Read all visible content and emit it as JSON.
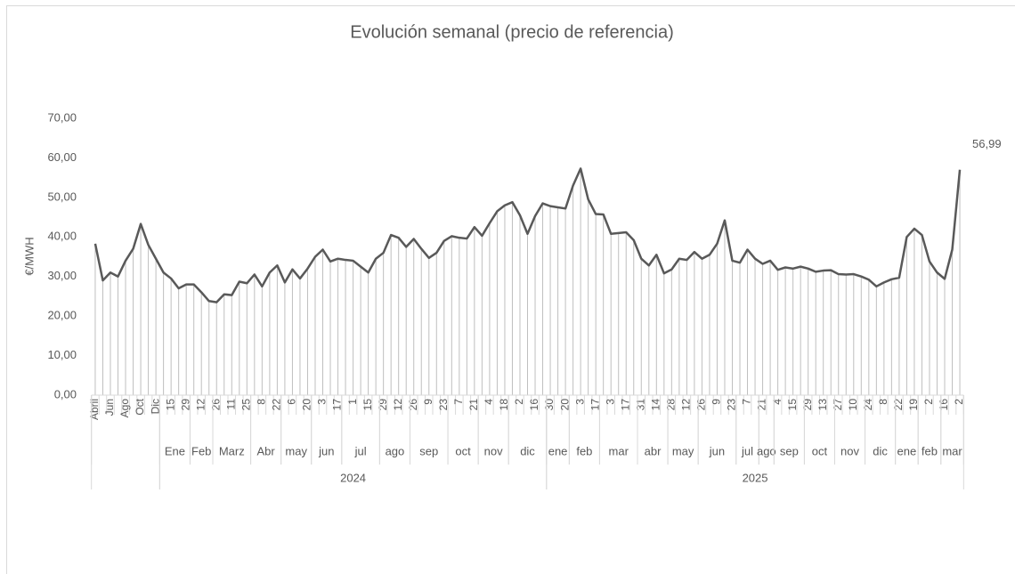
{
  "chart_data": {
    "type": "line",
    "title": "Evolución semanal (precio de referencia)",
    "y_label": "€/MWH",
    "categories": [
      "Abril",
      null,
      "Jun",
      null,
      "Ago",
      null,
      "Oct",
      null,
      "Dic",
      null,
      "15",
      null,
      "29",
      null,
      "12",
      null,
      "26",
      null,
      "11",
      null,
      "25",
      null,
      "8",
      null,
      "22",
      null,
      "6",
      null,
      "20",
      null,
      "3",
      null,
      "17",
      null,
      "1",
      null,
      "15",
      null,
      "29",
      null,
      "12",
      null,
      "26",
      null,
      "9",
      null,
      "23",
      null,
      "7",
      null,
      "21",
      null,
      "4",
      null,
      "18",
      null,
      "2",
      null,
      "16",
      null,
      "30",
      null,
      "20",
      null,
      "3",
      null,
      "17",
      null,
      "3",
      null,
      "17",
      null,
      "31",
      null,
      "14",
      null,
      "28",
      null,
      "12",
      null,
      "26",
      null,
      "9",
      null,
      "23",
      null,
      "7",
      null,
      "21",
      null,
      "4",
      null,
      "15",
      null,
      "29",
      null,
      "13",
      null,
      "27",
      null,
      "10",
      null,
      "24",
      null,
      "8",
      null,
      "22",
      null,
      "19",
      null,
      "2",
      null,
      "16",
      null,
      "2"
    ],
    "months": [
      null,
      null,
      null,
      null,
      null,
      null,
      null,
      null,
      null,
      "Ene",
      "Ene",
      "Ene",
      "Ene",
      "Feb",
      "Feb",
      "Feb",
      "Marz",
      "Marz",
      "Marz",
      "Marz",
      "Marz",
      "Abr",
      "Abr",
      "Abr",
      "Abr",
      "may",
      "may",
      "may",
      "may",
      "jun",
      "jun",
      "jun",
      "jun",
      "jul",
      "jul",
      "jul",
      "jul",
      "jul",
      "ago",
      "ago",
      "ago",
      "ago",
      "sep",
      "sep",
      "sep",
      "sep",
      "sep",
      "oct",
      "oct",
      "oct",
      "oct",
      "nov",
      "nov",
      "nov",
      "nov",
      "dic",
      "dic",
      "dic",
      "dic",
      "dic",
      "ene",
      "ene",
      "ene",
      "feb",
      "feb",
      "feb",
      "feb",
      "mar",
      "mar",
      "mar",
      "mar",
      "mar",
      "abr",
      "abr",
      "abr",
      "abr",
      "may",
      "may",
      "may",
      "may",
      "jun",
      "jun",
      "jun",
      "jun",
      "jun",
      "jul",
      "jul",
      "jul",
      "ago",
      "ago",
      "sep",
      "sep",
      "sep",
      "sep",
      "oct",
      "oct",
      "oct",
      "oct",
      "nov",
      "nov",
      "nov",
      "nov",
      "dic",
      "dic",
      "dic",
      "dic",
      "ene",
      "ene",
      "ene",
      "feb",
      "feb",
      "feb",
      "mar",
      "mar",
      "mar"
    ],
    "years": [
      null,
      null,
      null,
      null,
      null,
      null,
      null,
      null,
      null,
      "2024",
      "2024",
      "2024",
      "2024",
      "2024",
      "2024",
      "2024",
      "2024",
      "2024",
      "2024",
      "2024",
      "2024",
      "2024",
      "2024",
      "2024",
      "2024",
      "2024",
      "2024",
      "2024",
      "2024",
      "2024",
      "2024",
      "2024",
      "2024",
      "2024",
      "2024",
      "2024",
      "2024",
      "2024",
      "2024",
      "2024",
      "2024",
      "2024",
      "2024",
      "2024",
      "2024",
      "2024",
      "2024",
      "2024",
      "2024",
      "2024",
      "2024",
      "2024",
      "2024",
      "2024",
      "2024",
      "2024",
      "2024",
      "2024",
      "2024",
      "2024",
      "2025",
      "2025",
      "2025",
      "2025",
      "2025",
      "2025",
      "2025",
      "2025",
      "2025",
      "2025",
      "2025",
      "2025",
      "2025",
      "2025",
      "2025",
      "2025",
      "2025",
      "2025",
      "2025",
      "2025",
      "2025",
      "2025",
      "2025",
      "2025",
      "2025",
      "2025",
      "2025",
      "2025",
      "2025",
      "2025",
      "2025",
      "2025",
      "2025",
      "2025",
      "2025",
      "2025",
      "2025",
      "2025",
      "2025",
      "2025",
      "2025",
      "2025",
      "2025",
      "2025",
      "2025",
      "2025",
      "2025",
      "2025",
      "2025",
      "2025",
      "2025",
      "2025",
      "2025",
      "2025",
      "2025"
    ],
    "values": [
      38.3,
      29,
      31,
      30,
      34,
      37,
      43.3,
      38,
      34.5,
      31,
      29.5,
      27,
      28,
      28,
      26,
      23.8,
      23.5,
      25.5,
      25.3,
      28.7,
      28.3,
      30.5,
      27.5,
      31,
      32.8,
      28.5,
      31.8,
      29.5,
      32,
      35,
      36.8,
      33.8,
      34.5,
      34.2,
      34,
      32.5,
      31,
      34.5,
      36,
      40.5,
      39.8,
      37.5,
      39.5,
      37,
      34.7,
      36,
      39,
      40.2,
      39.8,
      39.6,
      42.5,
      40.3,
      43.5,
      46.5,
      48,
      48.8,
      45.5,
      40.8,
      45.3,
      48.5,
      47.8,
      47.5,
      47.2,
      53,
      57.3,
      49.5,
      45.8,
      45.7,
      40.8,
      41,
      41.2,
      39.2,
      34.5,
      32.8,
      35.5,
      30.8,
      31.8,
      34.5,
      34.2,
      36.2,
      34.5,
      35.5,
      38.3,
      44.2,
      34,
      33.5,
      36.8,
      34.5,
      33.2,
      34,
      31.7,
      32.3,
      32,
      32.5,
      32,
      31.2,
      31.5,
      31.6,
      30.6,
      30.5,
      30.6,
      30,
      29.2,
      27.5,
      28.5,
      29.3,
      29.7,
      40,
      42.1,
      40.5,
      33.8,
      31,
      29.4,
      36.8,
      56.99
    ],
    "value_labels": [
      null,
      null,
      null,
      null,
      null,
      null,
      null,
      null,
      null,
      null,
      null,
      null,
      null,
      null,
      null,
      null,
      null,
      null,
      null,
      null,
      null,
      null,
      null,
      null,
      null,
      null,
      null,
      null,
      null,
      null,
      null,
      null,
      null,
      null,
      null,
      null,
      null,
      null,
      null,
      null,
      null,
      null,
      null,
      null,
      null,
      null,
      null,
      null,
      null,
      null,
      null,
      null,
      null,
      null,
      null,
      null,
      null,
      null,
      null,
      null,
      null,
      null,
      null,
      null,
      null,
      null,
      null,
      null,
      null,
      null,
      null,
      null,
      null,
      null,
      null,
      null,
      null,
      null,
      null,
      null,
      null,
      null,
      null,
      null,
      null,
      null,
      null,
      null,
      null,
      null,
      null,
      null,
      null,
      null,
      null,
      null,
      null,
      null,
      null,
      null,
      null,
      null,
      null,
      null,
      null,
      null,
      null,
      null,
      null,
      null,
      null,
      null,
      null,
      null,
      "56,99"
    ],
    "color": "#595959",
    "drop_lines": true,
    "ylim": [
      0,
      70
    ],
    "yticks": [
      {
        "value": 0,
        "label": "0,00"
      },
      {
        "value": 10,
        "label": "10,00"
      },
      {
        "value": 20,
        "label": "20,00"
      },
      {
        "value": 30,
        "label": "30,00"
      },
      {
        "value": 40,
        "label": "40,00"
      },
      {
        "value": 50,
        "label": "50,00"
      },
      {
        "value": 60,
        "label": "60,00"
      },
      {
        "value": 70,
        "label": "70,00"
      }
    ]
  }
}
